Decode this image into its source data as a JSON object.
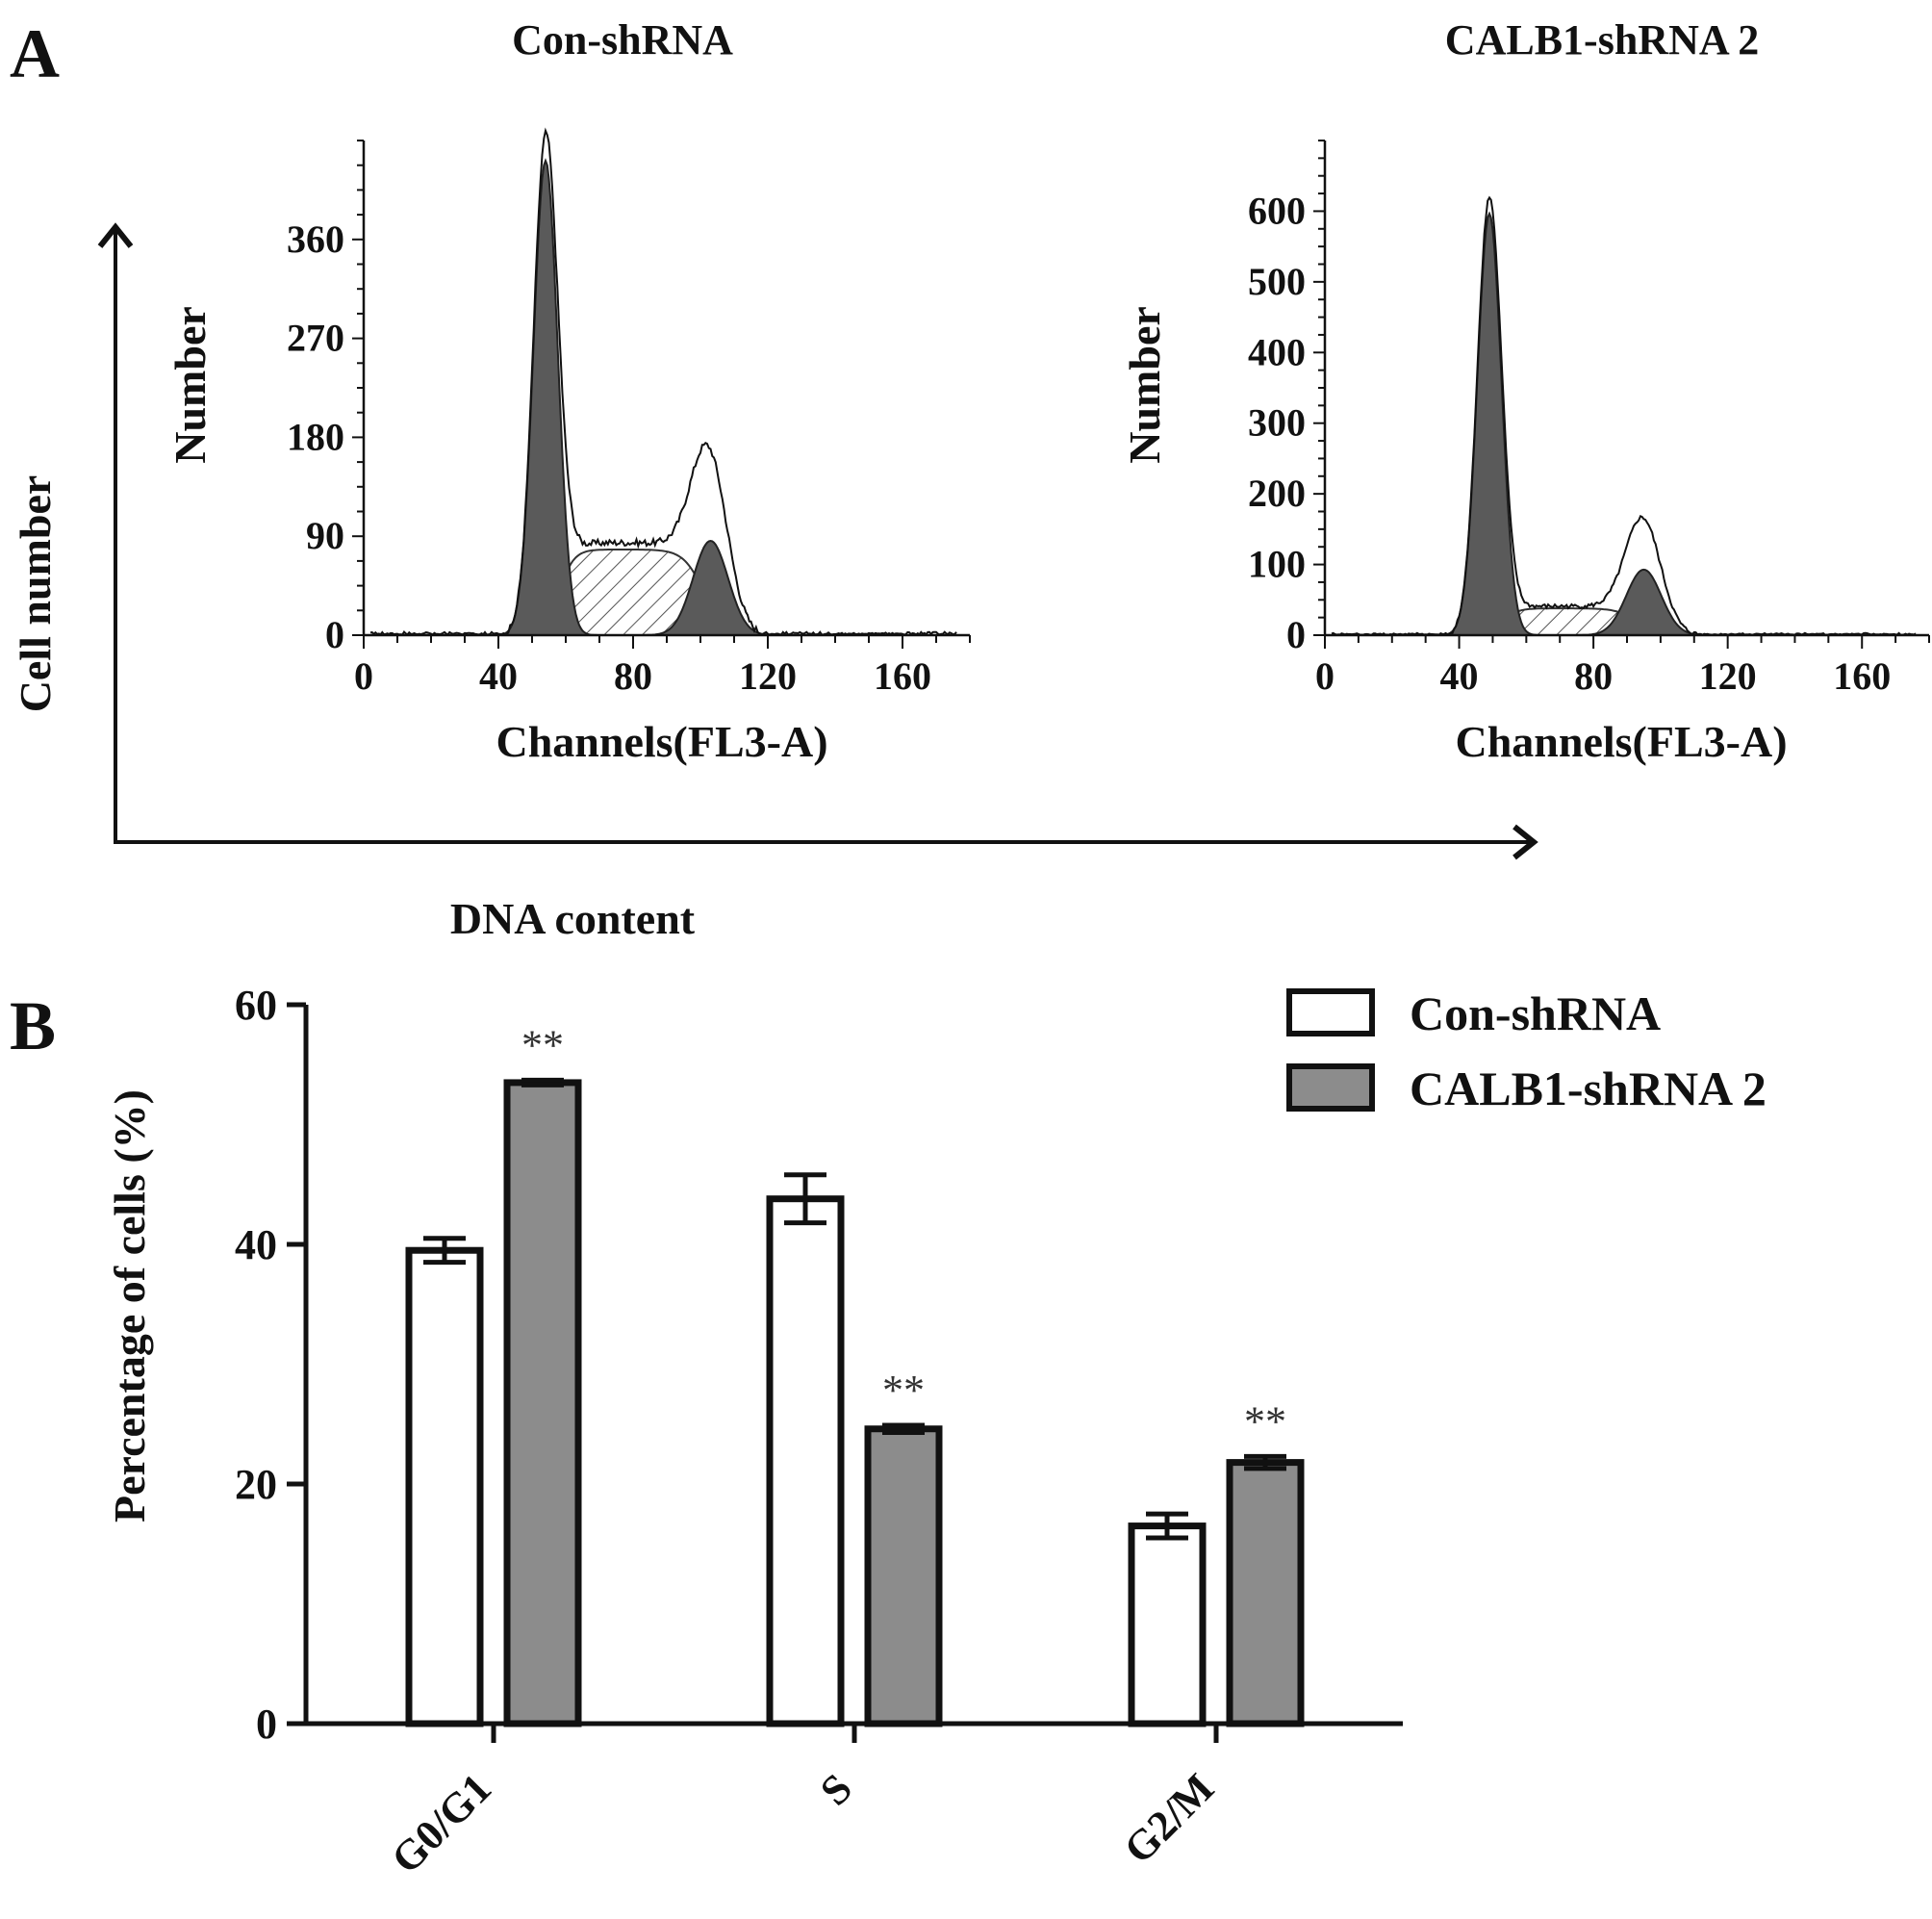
{
  "panel_a_letter": "A",
  "panel_b_letter": "B",
  "outer_axes": {
    "ylabel": "Cell number",
    "xlabel": "DNA content"
  },
  "chart_data": [
    {
      "type": "area",
      "title": "Con-shRNA",
      "xlabel": "Channels(FL3-A)",
      "ylabel": "Number",
      "xlim": [
        0,
        180
      ],
      "ylim": [
        0,
        450
      ],
      "xticks": [
        0,
        40,
        80,
        120,
        160
      ],
      "yticks": [
        0,
        90,
        180,
        270,
        360
      ],
      "peaks": {
        "G1_channel": 54,
        "G1_count": 445,
        "G2_channel": 103,
        "G2_count": 148,
        "S_plateau_count": 78
      },
      "grid": false
    },
    {
      "type": "area",
      "title": "CALB1-shRNA 2",
      "xlabel": "Channels(FL3-A)",
      "ylabel": "Number",
      "xlim": [
        0,
        180
      ],
      "ylim": [
        0,
        700
      ],
      "xticks": [
        0,
        40,
        80,
        120,
        160
      ],
      "yticks": [
        0,
        100,
        200,
        300,
        400,
        500,
        600
      ],
      "peaks": {
        "G1_channel": 49,
        "G1_count": 615,
        "G2_channel": 95,
        "G2_count": 160,
        "S_plateau_count": 38
      },
      "grid": false
    },
    {
      "type": "bar",
      "categories": [
        "G0/G1",
        "S",
        "G2/M"
      ],
      "ylabel": "Percentage of cells (%)",
      "xlabel": "",
      "ylim": [
        0,
        60
      ],
      "yticks": [
        0,
        20,
        40,
        60
      ],
      "series": [
        {
          "name": "Con-shRNA",
          "color": "#ffffff",
          "values": [
            39.5,
            43.8,
            16.5
          ],
          "errors": [
            1.0,
            2.0,
            1.0
          ]
        },
        {
          "name": "CALB1-shRNA 2",
          "color": "#8c8c8c",
          "values": [
            53.5,
            24.6,
            21.8
          ],
          "errors": [
            0.2,
            0.3,
            0.5
          ]
        }
      ],
      "significance": [
        "**",
        "**",
        "**"
      ],
      "legend_position": "top-right",
      "grid": false
    }
  ]
}
